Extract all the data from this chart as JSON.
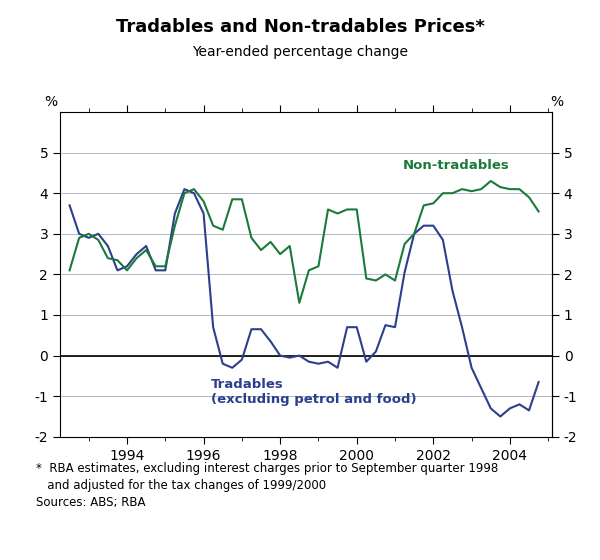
{
  "title": "Tradables and Non-tradables Prices*",
  "subtitle": "Year-ended percentage change",
  "ylabel_left": "%",
  "ylabel_right": "%",
  "ylim": [
    -2,
    6
  ],
  "yticks": [
    -2,
    -1,
    0,
    1,
    2,
    3,
    4,
    5
  ],
  "footnote_line1": "*  RBA estimates, excluding interest charges prior to September quarter 1998",
  "footnote_line2": "   and adjusted for the tax changes of 1999/2000",
  "footnote_line3": "Sources: ABS; RBA",
  "tradables_color": "#2B3F8C",
  "nontradables_color": "#1A7A3A",
  "zero_line_color": "#000000",
  "background_color": "#ffffff",
  "grid_color": "#b0b8c8",
  "tradables_label": "Tradables\n(excluding petrol and food)",
  "nontradables_label": "Non-tradables",
  "xticks": [
    1994,
    1996,
    1998,
    2000,
    2002,
    2004
  ],
  "xlim": [
    1992.25,
    2005.1
  ],
  "tradables_x": [
    1992.5,
    1992.75,
    1993.0,
    1993.25,
    1993.5,
    1993.75,
    1994.0,
    1994.25,
    1994.5,
    1994.75,
    1995.0,
    1995.25,
    1995.5,
    1995.75,
    1996.0,
    1996.25,
    1996.5,
    1996.75,
    1997.0,
    1997.25,
    1997.5,
    1997.75,
    1998.0,
    1998.25,
    1998.5,
    1998.75,
    1999.0,
    1999.25,
    1999.5,
    1999.75,
    2000.0,
    2000.25,
    2000.5,
    2000.75,
    2001.0,
    2001.25,
    2001.5,
    2001.75,
    2002.0,
    2002.25,
    2002.5,
    2002.75,
    2003.0,
    2003.25,
    2003.5,
    2003.75,
    2004.0,
    2004.25,
    2004.5,
    2004.75
  ],
  "tradables_y": [
    3.7,
    3.0,
    2.9,
    3.0,
    2.7,
    2.1,
    2.2,
    2.5,
    2.7,
    2.1,
    2.1,
    3.5,
    4.1,
    4.0,
    3.5,
    0.7,
    -0.2,
    -0.3,
    -0.1,
    0.65,
    0.65,
    0.35,
    0.0,
    -0.05,
    0.0,
    -0.15,
    -0.2,
    -0.15,
    -0.3,
    0.7,
    0.7,
    -0.15,
    0.1,
    0.75,
    0.7,
    2.05,
    3.0,
    3.2,
    3.2,
    2.85,
    1.6,
    0.7,
    -0.3,
    -0.8,
    -1.3,
    -1.5,
    -1.3,
    -1.2,
    -1.35,
    -0.65
  ],
  "nontradables_x": [
    1992.5,
    1992.75,
    1993.0,
    1993.25,
    1993.5,
    1993.75,
    1994.0,
    1994.25,
    1994.5,
    1994.75,
    1995.0,
    1995.25,
    1995.5,
    1995.75,
    1996.0,
    1996.25,
    1996.5,
    1996.75,
    1997.0,
    1997.25,
    1997.5,
    1997.75,
    1998.0,
    1998.25,
    1998.5,
    1998.75,
    1999.0,
    1999.25,
    1999.5,
    1999.75,
    2000.0,
    2000.25,
    2000.5,
    2000.75,
    2001.0,
    2001.25,
    2001.5,
    2001.75,
    2002.0,
    2002.25,
    2002.5,
    2002.75,
    2003.0,
    2003.25,
    2003.5,
    2003.75,
    2004.0,
    2004.25,
    2004.5,
    2004.75
  ],
  "nontradables_y": [
    2.1,
    2.9,
    3.0,
    2.85,
    2.4,
    2.35,
    2.1,
    2.4,
    2.6,
    2.2,
    2.2,
    3.2,
    4.0,
    4.1,
    3.8,
    3.2,
    3.1,
    3.85,
    3.85,
    2.9,
    2.6,
    2.8,
    2.5,
    2.7,
    1.3,
    2.1,
    2.2,
    3.6,
    3.5,
    3.6,
    3.6,
    1.9,
    1.85,
    2.0,
    1.85,
    2.75,
    3.0,
    3.7,
    3.75,
    4.0,
    4.0,
    4.1,
    4.05,
    4.1,
    4.3,
    4.15,
    4.1,
    4.1,
    3.9,
    3.55
  ]
}
